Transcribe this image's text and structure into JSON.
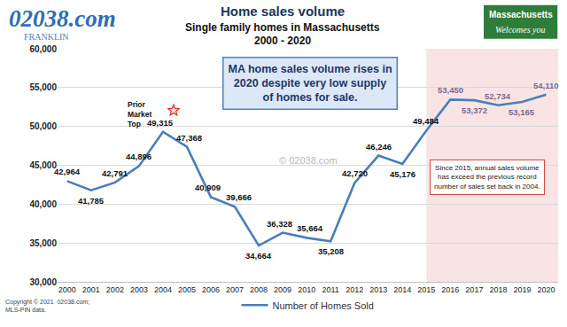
{
  "chart_data": {
    "type": "line",
    "title": "Home sales volume",
    "subtitle": [
      "Single family homes in Massachusetts",
      "2000 - 2020"
    ],
    "x": [
      2000,
      2001,
      2002,
      2003,
      2004,
      2005,
      2006,
      2007,
      2008,
      2009,
      2010,
      2011,
      2012,
      2013,
      2014,
      2015,
      2016,
      2017,
      2018,
      2019,
      2020
    ],
    "series": [
      {
        "name": "Number of Homes Sold",
        "color": "#4a7ebb",
        "values": [
          42964,
          41785,
          42791,
          44896,
          49315,
          47368,
          40909,
          39666,
          34664,
          36328,
          35664,
          35208,
          42720,
          46246,
          45176,
          49484,
          53450,
          53372,
          52734,
          53165,
          54110
        ],
        "value_labels": [
          "42,964",
          "41,785",
          "42,791",
          "44,896",
          "49,315",
          "47,368",
          "40,909",
          "39,666",
          "34,664",
          "36,328",
          "35,664",
          "35,208",
          "42,720",
          "46,246",
          "45,176",
          "49,484",
          "53,450",
          "53,372",
          "52,734",
          "53,165",
          "54,110"
        ]
      }
    ],
    "xlim": [
      1999.6,
      2020.5
    ],
    "xticks": [
      2000,
      2001,
      2002,
      2003,
      2004,
      2005,
      2006,
      2007,
      2008,
      2009,
      2010,
      2011,
      2012,
      2013,
      2014,
      2015,
      2016,
      2017,
      2018,
      2019,
      2020
    ],
    "ylim": [
      30000,
      60000
    ],
    "yticks": [
      {
        "value": 30000,
        "label": "30,000"
      },
      {
        "value": 35000,
        "label": "35,000"
      },
      {
        "value": 40000,
        "label": "40,000"
      },
      {
        "value": 45000,
        "label": "45,000"
      },
      {
        "value": 50000,
        "label": "50,000"
      },
      {
        "value": 55000,
        "label": "55,000"
      },
      {
        "value": 60000,
        "label": "60,000"
      }
    ],
    "grid": true,
    "legend": "bottom",
    "data_labels": true,
    "highlight_from": 2015,
    "headline": [
      "MA home sales volume rises in",
      "2020 despite very low supply",
      "of homes for sale."
    ],
    "peak_label": [
      "Prior",
      "Market",
      "Top"
    ],
    "note": [
      "Since 2015, annual sales volume",
      "has exceed the previous record",
      "number of sales set back in 2004."
    ],
    "watermark": "© 02038.com",
    "logo": {
      "text": "02038.com",
      "subtext": "FRANKLIN"
    },
    "sign": [
      "Massachusetts",
      "Welcomes you"
    ],
    "source": [
      "Copyright © 2021  02038.com;",
      "MLS-PIN data."
    ]
  }
}
